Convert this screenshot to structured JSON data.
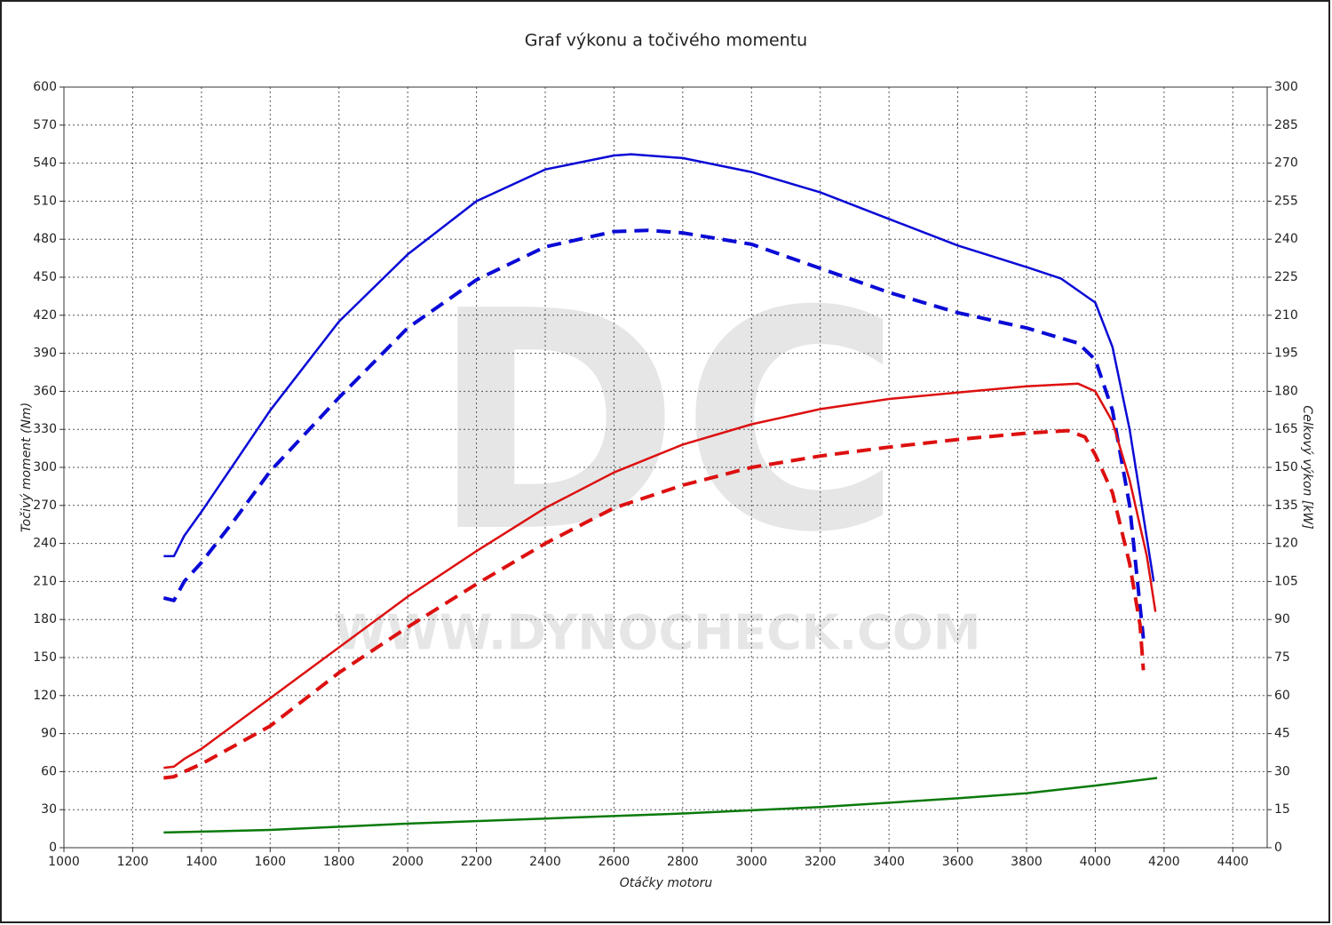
{
  "chart_data": {
    "type": "line",
    "title": "Graf výkonu a točivého momentu",
    "x_label": "Otáčky motoru",
    "y_label": "Točivý moment (Nm)",
    "y2_label": "Celkový výkon [kW]",
    "watermark": [
      "DC",
      "WWW.DYNOCHECK.COM"
    ],
    "xlim": [
      1000,
      4500
    ],
    "xticks": [
      1000,
      1200,
      1400,
      1600,
      1800,
      2000,
      2200,
      2400,
      2600,
      2800,
      3000,
      3200,
      3400,
      3600,
      3800,
      4000,
      4200,
      4400
    ],
    "ylim": [
      0,
      600
    ],
    "yticks": [
      0,
      30,
      60,
      90,
      120,
      150,
      180,
      210,
      240,
      270,
      300,
      330,
      360,
      390,
      420,
      450,
      480,
      510,
      540,
      570,
      600
    ],
    "y2lim": [
      0,
      300
    ],
    "y2ticks": [
      0,
      15,
      30,
      45,
      60,
      75,
      90,
      105,
      120,
      135,
      150,
      165,
      180,
      195,
      210,
      225,
      240,
      255,
      270,
      285,
      300
    ],
    "grid": true,
    "series": [
      {
        "color": "#0a0ad6",
        "dashed": false,
        "axis": "y",
        "x": [
          1290,
          1320,
          1350,
          1400,
          1500,
          1600,
          1800,
          2000,
          2200,
          2400,
          2600,
          2650,
          2800,
          3000,
          3200,
          3400,
          3600,
          3800,
          3900,
          4000,
          4050,
          4100,
          4170
        ],
        "values": [
          230,
          230,
          246,
          265,
          305,
          345,
          415,
          468,
          510,
          535,
          546,
          547,
          544,
          533,
          517,
          496,
          475,
          458,
          449,
          430,
          395,
          330,
          210
        ]
      },
      {
        "color": "#0a0ad6",
        "dashed": true,
        "axis": "y",
        "x": [
          1290,
          1320,
          1350,
          1400,
          1500,
          1600,
          1800,
          2000,
          2200,
          2400,
          2600,
          2700,
          2800,
          3000,
          3200,
          3400,
          3600,
          3800,
          3950,
          4000,
          4050,
          4100,
          4140
        ],
        "values": [
          197,
          195,
          210,
          225,
          260,
          297,
          355,
          410,
          448,
          474,
          486,
          487,
          485,
          476,
          457,
          438,
          422,
          410,
          398,
          385,
          345,
          270,
          165
        ]
      },
      {
        "color": "#dd1010",
        "dashed": false,
        "axis": "y2",
        "x": [
          1290,
          1320,
          1350,
          1400,
          1600,
          1800,
          2000,
          2200,
          2400,
          2600,
          2800,
          3000,
          3200,
          3400,
          3600,
          3800,
          3950,
          4000,
          4050,
          4100,
          4150,
          4175
        ],
        "values": [
          31.5,
          32,
          35,
          39,
          59,
          79,
          99,
          117,
          134,
          148,
          159,
          167,
          173,
          177,
          179.5,
          182,
          183,
          180,
          168,
          145,
          115,
          93
        ]
      },
      {
        "color": "#dd1010",
        "dashed": true,
        "axis": "y2",
        "x": [
          1290,
          1320,
          1350,
          1400,
          1600,
          1800,
          2000,
          2200,
          2400,
          2600,
          2800,
          3000,
          3200,
          3400,
          3600,
          3800,
          3920,
          3970,
          4000,
          4050,
          4100,
          4130,
          4140
        ],
        "values": [
          27.5,
          28,
          30,
          33,
          48,
          69,
          87,
          104,
          120,
          134,
          143,
          150,
          154.5,
          158,
          161,
          163.5,
          164.5,
          162,
          155,
          140,
          112,
          88,
          70
        ]
      },
      {
        "color": "#0a7a0a",
        "dashed": false,
        "axis": "y2",
        "x": [
          1290,
          1600,
          2000,
          2400,
          2800,
          3200,
          3600,
          3800,
          4000,
          4180
        ],
        "values": [
          6,
          7,
          9.5,
          11.5,
          13.5,
          16,
          19.5,
          21.5,
          24.5,
          27.5
        ]
      }
    ]
  }
}
